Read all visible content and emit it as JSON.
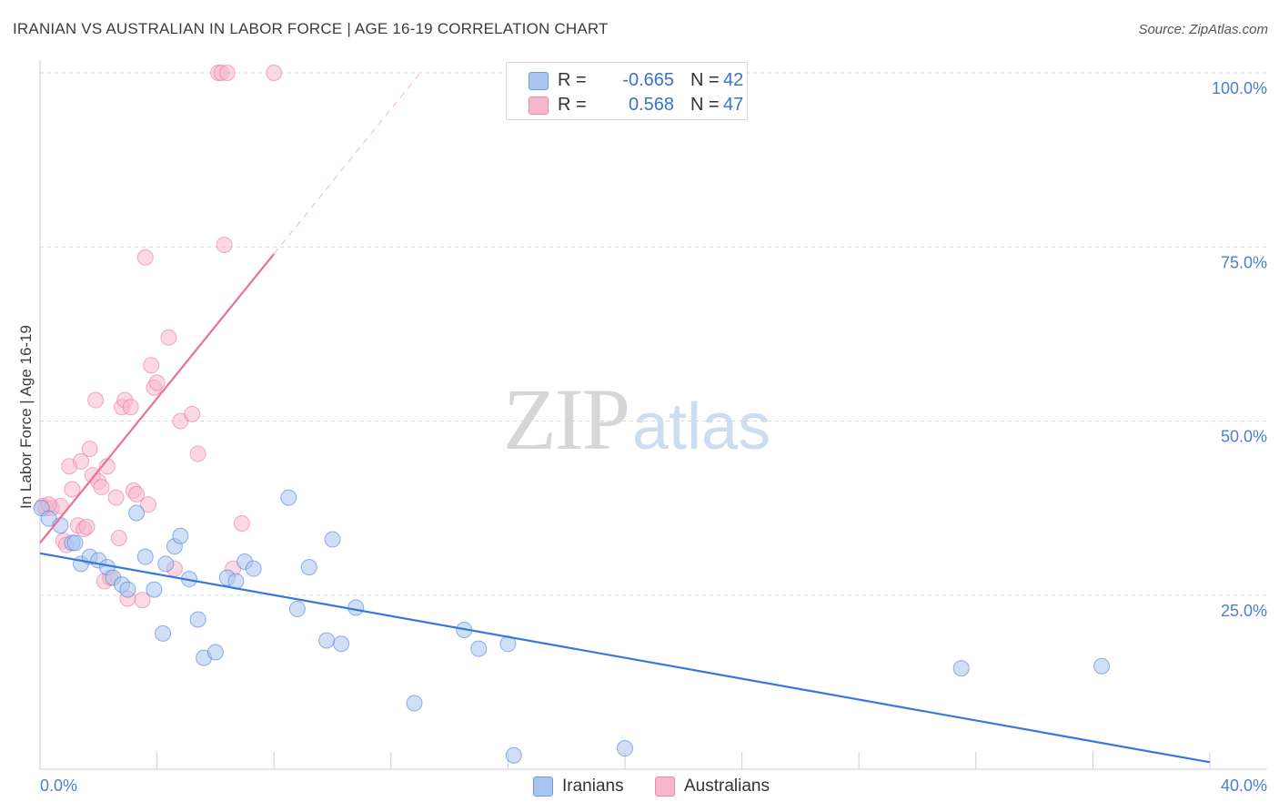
{
  "header": {
    "title": "IRANIAN VS AUSTRALIAN IN LABOR FORCE | AGE 16-19 CORRELATION CHART",
    "source": "Source: ZipAtlas.com"
  },
  "watermark": {
    "zip": "ZIP",
    "atlas": "atlas"
  },
  "legend": {
    "iranians": {
      "r_label": "R =",
      "r_value": "-0.665",
      "n_label": "N =",
      "n_value": "42",
      "color": "#a9c4ef"
    },
    "australians": {
      "r_label": "R =",
      "r_value": "0.568",
      "n_label": "N =",
      "n_value": "47",
      "color": "#f7b8cb"
    }
  },
  "bottom_legend": {
    "iranians": "Iranians",
    "australians": "Australians"
  },
  "chart_data": {
    "type": "scatter",
    "title": "IRANIAN VS AUSTRALIAN IN LABOR FORCE | AGE 16-19 CORRELATION CHART",
    "xlabel": "",
    "ylabel": "In Labor Force | Age 16-19",
    "xlim": [
      0,
      40
    ],
    "ylim": [
      0,
      100
    ],
    "x_tick_labels": [
      "0.0%",
      "40.0%"
    ],
    "y_ticks": [
      25,
      50,
      75,
      100
    ],
    "y_tick_labels": [
      "25.0%",
      "50.0%",
      "75.0%",
      "100.0%"
    ],
    "grid": true,
    "series": [
      {
        "name": "Iranians",
        "color": "#3a78d8",
        "fill": "#a9c4ef",
        "points": [
          [
            0.05,
            37.5
          ],
          [
            0.3,
            36.0
          ],
          [
            0.7,
            35.0
          ],
          [
            1.1,
            32.5
          ],
          [
            1.2,
            32.5
          ],
          [
            1.4,
            29.5
          ],
          [
            1.7,
            30.5
          ],
          [
            2.0,
            30.0
          ],
          [
            2.3,
            29.0
          ],
          [
            2.5,
            27.5
          ],
          [
            2.8,
            26.5
          ],
          [
            3.0,
            25.8
          ],
          [
            3.3,
            36.8
          ],
          [
            3.6,
            30.5
          ],
          [
            3.9,
            25.8
          ],
          [
            4.2,
            19.5
          ],
          [
            4.3,
            29.5
          ],
          [
            4.6,
            32.0
          ],
          [
            4.8,
            33.5
          ],
          [
            5.1,
            27.3
          ],
          [
            5.4,
            21.5
          ],
          [
            5.6,
            16.0
          ],
          [
            6.0,
            16.8
          ],
          [
            6.4,
            27.5
          ],
          [
            6.7,
            27.0
          ],
          [
            7.0,
            29.8
          ],
          [
            7.3,
            28.8
          ],
          [
            8.5,
            39.0
          ],
          [
            8.8,
            23.0
          ],
          [
            9.2,
            29.0
          ],
          [
            9.8,
            18.5
          ],
          [
            10.0,
            33.0
          ],
          [
            10.3,
            18.0
          ],
          [
            10.8,
            23.2
          ],
          [
            12.8,
            9.5
          ],
          [
            14.5,
            20.0
          ],
          [
            15.0,
            17.3
          ],
          [
            16.0,
            18.0
          ],
          [
            16.2,
            2.0
          ],
          [
            20.0,
            3.0
          ],
          [
            31.5,
            14.5
          ],
          [
            36.3,
            14.8
          ]
        ],
        "trend": {
          "x": [
            0,
            40
          ],
          "y": [
            31.0,
            1.0
          ]
        }
      },
      {
        "name": "Australians",
        "color": "#e8709a",
        "fill": "#f7b8cb",
        "points": [
          [
            0.1,
            37.8
          ],
          [
            0.2,
            37.5
          ],
          [
            0.4,
            37.5
          ],
          [
            0.7,
            37.8
          ],
          [
            0.8,
            32.8
          ],
          [
            0.9,
            32.2
          ],
          [
            1.0,
            43.5
          ],
          [
            1.1,
            40.2
          ],
          [
            1.3,
            35.0
          ],
          [
            1.4,
            44.2
          ],
          [
            1.5,
            34.5
          ],
          [
            1.6,
            34.8
          ],
          [
            1.7,
            46.0
          ],
          [
            1.8,
            42.2
          ],
          [
            1.9,
            53.0
          ],
          [
            2.0,
            41.3
          ],
          [
            2.1,
            40.5
          ],
          [
            2.2,
            27.0
          ],
          [
            2.3,
            43.5
          ],
          [
            2.4,
            27.5
          ],
          [
            2.6,
            39.0
          ],
          [
            2.7,
            33.2
          ],
          [
            2.8,
            52.0
          ],
          [
            2.9,
            53.0
          ],
          [
            3.0,
            24.5
          ],
          [
            3.1,
            52.0
          ],
          [
            3.2,
            40.0
          ],
          [
            3.3,
            39.5
          ],
          [
            3.5,
            24.3
          ],
          [
            3.6,
            73.5
          ],
          [
            3.7,
            38.0
          ],
          [
            3.8,
            58.0
          ],
          [
            3.9,
            54.8
          ],
          [
            4.0,
            55.5
          ],
          [
            4.4,
            62.0
          ],
          [
            4.6,
            28.8
          ],
          [
            4.8,
            50.0
          ],
          [
            5.2,
            51.0
          ],
          [
            5.4,
            45.3
          ],
          [
            6.1,
            100.0
          ],
          [
            6.2,
            100.0
          ],
          [
            6.3,
            75.3
          ],
          [
            6.4,
            100.0
          ],
          [
            6.6,
            28.8
          ],
          [
            6.9,
            35.3
          ],
          [
            8.0,
            100.0
          ],
          [
            0.3,
            38.0
          ]
        ],
        "trend": {
          "x": [
            0,
            8.0
          ],
          "y": [
            32.5,
            74.0
          ]
        },
        "trend_dashed": {
          "x": [
            8.0,
            13.0
          ],
          "y": [
            74.0,
            100.0
          ]
        }
      }
    ]
  }
}
